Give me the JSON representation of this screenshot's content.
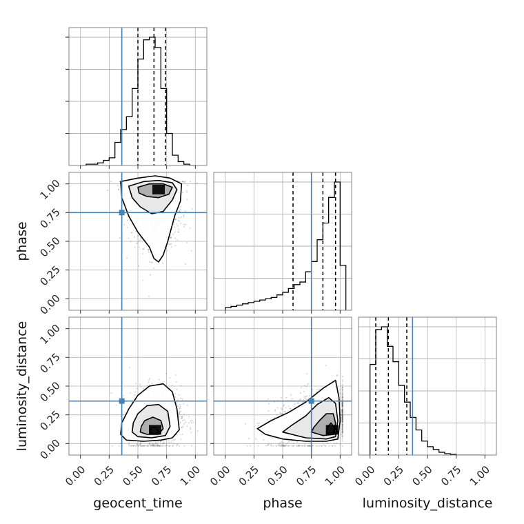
{
  "chart_data": {
    "type": "corner",
    "parameters": [
      {
        "name": "geocent_time",
        "xlabel": "geocent_time",
        "ylabel": ""
      },
      {
        "name": "phase",
        "xlabel": "phase",
        "ylabel": "phase"
      },
      {
        "name": "luminosity_distance",
        "xlabel": "luminosity_distance",
        "ylabel": "luminosity_distance"
      }
    ],
    "axis_range": [
      -0.1,
      1.1
    ],
    "ticks": [
      0.0,
      0.25,
      0.5,
      0.75,
      1.0
    ],
    "tick_labels": [
      "0.00",
      "0.25",
      "0.50",
      "0.75",
      "1.00"
    ],
    "grid": true,
    "colors": {
      "truth": "#4682b4",
      "hist": "#000000",
      "contour": "#000000",
      "scatter": "#555555"
    },
    "truths": {
      "geocent_time": 0.36,
      "phase": 0.75,
      "luminosity_distance": 0.37
    },
    "quantiles": {
      "geocent_time": [
        0.5,
        0.64,
        0.74
      ],
      "phase": [
        0.59,
        0.85,
        0.96
      ],
      "luminosity_distance": [
        0.05,
        0.16,
        0.32
      ]
    },
    "marginals": {
      "geocent_time": {
        "bin_edges": [
          0.0,
          0.05,
          0.1,
          0.15,
          0.2,
          0.25,
          0.3,
          0.35,
          0.4,
          0.45,
          0.5,
          0.55,
          0.6,
          0.65,
          0.7,
          0.75,
          0.8,
          0.85,
          0.9,
          0.95,
          1.0
        ],
        "counts": [
          0.0,
          0.01,
          0.01,
          0.02,
          0.04,
          0.06,
          0.18,
          0.28,
          0.38,
          0.6,
          0.83,
          0.98,
          1.0,
          0.92,
          0.6,
          0.25,
          0.08,
          0.03,
          0.01,
          0.0
        ]
      },
      "phase": {
        "bin_edges": [
          0.0,
          0.05,
          0.1,
          0.15,
          0.2,
          0.25,
          0.3,
          0.35,
          0.4,
          0.45,
          0.5,
          0.55,
          0.6,
          0.65,
          0.7,
          0.75,
          0.8,
          0.85,
          0.9,
          0.95,
          1.0,
          1.05
        ],
        "counts": [
          0.02,
          0.03,
          0.04,
          0.05,
          0.06,
          0.07,
          0.08,
          0.09,
          0.1,
          0.12,
          0.14,
          0.17,
          0.2,
          0.22,
          0.3,
          0.38,
          0.55,
          0.68,
          0.88,
          1.0,
          0.35
        ]
      },
      "luminosity_distance": {
        "bin_edges": [
          0.0,
          0.05,
          0.1,
          0.15,
          0.2,
          0.25,
          0.3,
          0.35,
          0.4,
          0.45,
          0.5,
          0.55,
          0.6,
          0.65,
          0.7,
          0.75,
          0.8,
          0.85,
          0.9,
          0.95,
          1.0
        ],
        "counts": [
          0.65,
          0.9,
          0.92,
          0.78,
          0.67,
          0.5,
          0.38,
          0.27,
          0.18,
          0.1,
          0.06,
          0.04,
          0.02,
          0.01,
          0.005,
          0.0,
          0.0,
          0.0,
          0.0,
          0.0
        ]
      }
    },
    "joint": [
      {
        "x": "geocent_time",
        "y": "phase",
        "center": [
          0.66,
          0.87
        ],
        "spread": [
          0.09,
          0.17
        ],
        "corr": -0.05,
        "peak": [
          0.68,
          0.95
        ],
        "contours": [
          [
            [
              0.35,
              1.02
            ],
            [
              0.5,
              1.05
            ],
            [
              0.65,
              1.07
            ],
            [
              0.78,
              1.05
            ],
            [
              0.88,
              1.0
            ],
            [
              0.87,
              0.85
            ],
            [
              0.82,
              0.72
            ],
            [
              0.76,
              0.5
            ],
            [
              0.72,
              0.38
            ],
            [
              0.68,
              0.32
            ],
            [
              0.64,
              0.35
            ],
            [
              0.6,
              0.45
            ],
            [
              0.5,
              0.58
            ],
            [
              0.42,
              0.72
            ],
            [
              0.36,
              0.88
            ]
          ],
          [
            [
              0.42,
              0.98
            ],
            [
              0.55,
              1.02
            ],
            [
              0.68,
              1.03
            ],
            [
              0.8,
              1.01
            ],
            [
              0.84,
              0.95
            ],
            [
              0.8,
              0.86
            ],
            [
              0.72,
              0.76
            ],
            [
              0.62,
              0.74
            ],
            [
              0.52,
              0.8
            ],
            [
              0.45,
              0.88
            ]
          ],
          [
            [
              0.5,
              0.97
            ],
            [
              0.6,
              1.0
            ],
            [
              0.72,
              1.0
            ],
            [
              0.8,
              0.97
            ],
            [
              0.77,
              0.91
            ],
            [
              0.68,
              0.88
            ],
            [
              0.58,
              0.89
            ],
            [
              0.51,
              0.92
            ]
          ]
        ]
      },
      {
        "x": "geocent_time",
        "y": "luminosity_distance",
        "center": [
          0.65,
          0.2
        ],
        "spread": [
          0.09,
          0.11
        ],
        "corr": 0.1,
        "peak": [
          0.65,
          0.12
        ],
        "contours": [
          [
            [
              0.35,
              0.08
            ],
            [
              0.4,
              0.03
            ],
            [
              0.55,
              0.02
            ],
            [
              0.7,
              0.03
            ],
            [
              0.8,
              0.05
            ],
            [
              0.86,
              0.12
            ],
            [
              0.84,
              0.3
            ],
            [
              0.8,
              0.45
            ],
            [
              0.72,
              0.52
            ],
            [
              0.6,
              0.5
            ],
            [
              0.5,
              0.42
            ],
            [
              0.42,
              0.3
            ],
            [
              0.36,
              0.18
            ]
          ],
          [
            [
              0.45,
              0.1
            ],
            [
              0.5,
              0.06
            ],
            [
              0.62,
              0.05
            ],
            [
              0.74,
              0.07
            ],
            [
              0.78,
              0.15
            ],
            [
              0.76,
              0.28
            ],
            [
              0.68,
              0.34
            ],
            [
              0.58,
              0.33
            ],
            [
              0.5,
              0.26
            ],
            [
              0.46,
              0.18
            ]
          ],
          [
            [
              0.52,
              0.1
            ],
            [
              0.58,
              0.08
            ],
            [
              0.68,
              0.08
            ],
            [
              0.72,
              0.13
            ],
            [
              0.7,
              0.2
            ],
            [
              0.63,
              0.23
            ],
            [
              0.56,
              0.2
            ],
            [
              0.53,
              0.15
            ]
          ],
          [
            [
              0.6,
              0.1
            ],
            [
              0.64,
              0.08
            ],
            [
              0.68,
              0.1
            ],
            [
              0.66,
              0.14
            ],
            [
              0.62,
              0.14
            ]
          ]
        ]
      },
      {
        "x": "phase",
        "y": "luminosity_distance",
        "center": [
          0.8,
          0.2
        ],
        "spread": [
          0.17,
          0.11
        ],
        "corr": 0.35,
        "peak": [
          0.93,
          0.12
        ],
        "contours": [
          [
            [
              0.28,
              0.13
            ],
            [
              0.35,
              0.08
            ],
            [
              0.5,
              0.04
            ],
            [
              0.7,
              0.02
            ],
            [
              0.88,
              0.02
            ],
            [
              0.98,
              0.04
            ],
            [
              1.0,
              0.2
            ],
            [
              0.99,
              0.4
            ],
            [
              0.96,
              0.55
            ],
            [
              0.85,
              0.48
            ],
            [
              0.7,
              0.36
            ],
            [
              0.55,
              0.27
            ],
            [
              0.4,
              0.2
            ]
          ],
          [
            [
              0.5,
              0.1
            ],
            [
              0.7,
              0.05
            ],
            [
              0.88,
              0.04
            ],
            [
              0.96,
              0.06
            ],
            [
              0.98,
              0.2
            ],
            [
              0.96,
              0.35
            ],
            [
              0.9,
              0.4
            ],
            [
              0.8,
              0.34
            ],
            [
              0.7,
              0.24
            ],
            [
              0.58,
              0.16
            ]
          ],
          [
            [
              0.75,
              0.1
            ],
            [
              0.85,
              0.07
            ],
            [
              0.95,
              0.08
            ],
            [
              0.96,
              0.18
            ],
            [
              0.94,
              0.26
            ],
            [
              0.88,
              0.26
            ],
            [
              0.82,
              0.2
            ],
            [
              0.77,
              0.14
            ]
          ],
          [
            [
              0.88,
              0.09
            ],
            [
              0.94,
              0.08
            ],
            [
              0.95,
              0.14
            ],
            [
              0.92,
              0.18
            ],
            [
              0.89,
              0.14
            ]
          ]
        ]
      }
    ]
  }
}
